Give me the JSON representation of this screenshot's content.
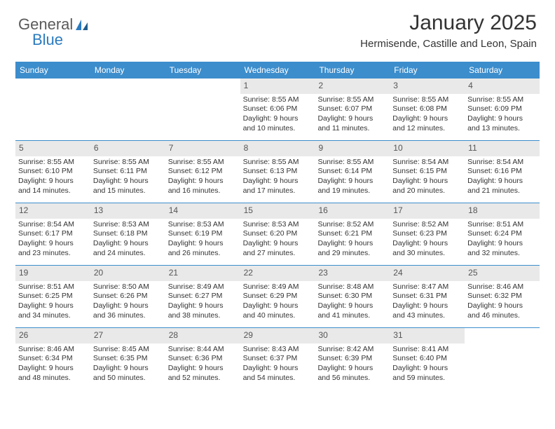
{
  "brand": {
    "part1": "General",
    "part2": "Blue"
  },
  "title": {
    "month": "January 2025",
    "location": "Hermisende, Castille and Leon, Spain"
  },
  "colors": {
    "header_bg": "#3c8dcc",
    "header_text": "#ffffff",
    "daynum_bg": "#e9e9e9",
    "daynum_text": "#555555",
    "body_text": "#333333",
    "row_border": "#3c8dcc",
    "logo_gray": "#5a5a5a",
    "logo_blue": "#2b7bbf"
  },
  "day_names": [
    "Sunday",
    "Monday",
    "Tuesday",
    "Wednesday",
    "Thursday",
    "Friday",
    "Saturday"
  ],
  "weeks": [
    [
      {
        "empty": true
      },
      {
        "empty": true
      },
      {
        "empty": true
      },
      {
        "day": "1",
        "sunrise": "Sunrise: 8:55 AM",
        "sunset": "Sunset: 6:06 PM",
        "daylight1": "Daylight: 9 hours",
        "daylight2": "and 10 minutes."
      },
      {
        "day": "2",
        "sunrise": "Sunrise: 8:55 AM",
        "sunset": "Sunset: 6:07 PM",
        "daylight1": "Daylight: 9 hours",
        "daylight2": "and 11 minutes."
      },
      {
        "day": "3",
        "sunrise": "Sunrise: 8:55 AM",
        "sunset": "Sunset: 6:08 PM",
        "daylight1": "Daylight: 9 hours",
        "daylight2": "and 12 minutes."
      },
      {
        "day": "4",
        "sunrise": "Sunrise: 8:55 AM",
        "sunset": "Sunset: 6:09 PM",
        "daylight1": "Daylight: 9 hours",
        "daylight2": "and 13 minutes."
      }
    ],
    [
      {
        "day": "5",
        "sunrise": "Sunrise: 8:55 AM",
        "sunset": "Sunset: 6:10 PM",
        "daylight1": "Daylight: 9 hours",
        "daylight2": "and 14 minutes."
      },
      {
        "day": "6",
        "sunrise": "Sunrise: 8:55 AM",
        "sunset": "Sunset: 6:11 PM",
        "daylight1": "Daylight: 9 hours",
        "daylight2": "and 15 minutes."
      },
      {
        "day": "7",
        "sunrise": "Sunrise: 8:55 AM",
        "sunset": "Sunset: 6:12 PM",
        "daylight1": "Daylight: 9 hours",
        "daylight2": "and 16 minutes."
      },
      {
        "day": "8",
        "sunrise": "Sunrise: 8:55 AM",
        "sunset": "Sunset: 6:13 PM",
        "daylight1": "Daylight: 9 hours",
        "daylight2": "and 17 minutes."
      },
      {
        "day": "9",
        "sunrise": "Sunrise: 8:55 AM",
        "sunset": "Sunset: 6:14 PM",
        "daylight1": "Daylight: 9 hours",
        "daylight2": "and 19 minutes."
      },
      {
        "day": "10",
        "sunrise": "Sunrise: 8:54 AM",
        "sunset": "Sunset: 6:15 PM",
        "daylight1": "Daylight: 9 hours",
        "daylight2": "and 20 minutes."
      },
      {
        "day": "11",
        "sunrise": "Sunrise: 8:54 AM",
        "sunset": "Sunset: 6:16 PM",
        "daylight1": "Daylight: 9 hours",
        "daylight2": "and 21 minutes."
      }
    ],
    [
      {
        "day": "12",
        "sunrise": "Sunrise: 8:54 AM",
        "sunset": "Sunset: 6:17 PM",
        "daylight1": "Daylight: 9 hours",
        "daylight2": "and 23 minutes."
      },
      {
        "day": "13",
        "sunrise": "Sunrise: 8:53 AM",
        "sunset": "Sunset: 6:18 PM",
        "daylight1": "Daylight: 9 hours",
        "daylight2": "and 24 minutes."
      },
      {
        "day": "14",
        "sunrise": "Sunrise: 8:53 AM",
        "sunset": "Sunset: 6:19 PM",
        "daylight1": "Daylight: 9 hours",
        "daylight2": "and 26 minutes."
      },
      {
        "day": "15",
        "sunrise": "Sunrise: 8:53 AM",
        "sunset": "Sunset: 6:20 PM",
        "daylight1": "Daylight: 9 hours",
        "daylight2": "and 27 minutes."
      },
      {
        "day": "16",
        "sunrise": "Sunrise: 8:52 AM",
        "sunset": "Sunset: 6:21 PM",
        "daylight1": "Daylight: 9 hours",
        "daylight2": "and 29 minutes."
      },
      {
        "day": "17",
        "sunrise": "Sunrise: 8:52 AM",
        "sunset": "Sunset: 6:23 PM",
        "daylight1": "Daylight: 9 hours",
        "daylight2": "and 30 minutes."
      },
      {
        "day": "18",
        "sunrise": "Sunrise: 8:51 AM",
        "sunset": "Sunset: 6:24 PM",
        "daylight1": "Daylight: 9 hours",
        "daylight2": "and 32 minutes."
      }
    ],
    [
      {
        "day": "19",
        "sunrise": "Sunrise: 8:51 AM",
        "sunset": "Sunset: 6:25 PM",
        "daylight1": "Daylight: 9 hours",
        "daylight2": "and 34 minutes."
      },
      {
        "day": "20",
        "sunrise": "Sunrise: 8:50 AM",
        "sunset": "Sunset: 6:26 PM",
        "daylight1": "Daylight: 9 hours",
        "daylight2": "and 36 minutes."
      },
      {
        "day": "21",
        "sunrise": "Sunrise: 8:49 AM",
        "sunset": "Sunset: 6:27 PM",
        "daylight1": "Daylight: 9 hours",
        "daylight2": "and 38 minutes."
      },
      {
        "day": "22",
        "sunrise": "Sunrise: 8:49 AM",
        "sunset": "Sunset: 6:29 PM",
        "daylight1": "Daylight: 9 hours",
        "daylight2": "and 40 minutes."
      },
      {
        "day": "23",
        "sunrise": "Sunrise: 8:48 AM",
        "sunset": "Sunset: 6:30 PM",
        "daylight1": "Daylight: 9 hours",
        "daylight2": "and 41 minutes."
      },
      {
        "day": "24",
        "sunrise": "Sunrise: 8:47 AM",
        "sunset": "Sunset: 6:31 PM",
        "daylight1": "Daylight: 9 hours",
        "daylight2": "and 43 minutes."
      },
      {
        "day": "25",
        "sunrise": "Sunrise: 8:46 AM",
        "sunset": "Sunset: 6:32 PM",
        "daylight1": "Daylight: 9 hours",
        "daylight2": "and 46 minutes."
      }
    ],
    [
      {
        "day": "26",
        "sunrise": "Sunrise: 8:46 AM",
        "sunset": "Sunset: 6:34 PM",
        "daylight1": "Daylight: 9 hours",
        "daylight2": "and 48 minutes."
      },
      {
        "day": "27",
        "sunrise": "Sunrise: 8:45 AM",
        "sunset": "Sunset: 6:35 PM",
        "daylight1": "Daylight: 9 hours",
        "daylight2": "and 50 minutes."
      },
      {
        "day": "28",
        "sunrise": "Sunrise: 8:44 AM",
        "sunset": "Sunset: 6:36 PM",
        "daylight1": "Daylight: 9 hours",
        "daylight2": "and 52 minutes."
      },
      {
        "day": "29",
        "sunrise": "Sunrise: 8:43 AM",
        "sunset": "Sunset: 6:37 PM",
        "daylight1": "Daylight: 9 hours",
        "daylight2": "and 54 minutes."
      },
      {
        "day": "30",
        "sunrise": "Sunrise: 8:42 AM",
        "sunset": "Sunset: 6:39 PM",
        "daylight1": "Daylight: 9 hours",
        "daylight2": "and 56 minutes."
      },
      {
        "day": "31",
        "sunrise": "Sunrise: 8:41 AM",
        "sunset": "Sunset: 6:40 PM",
        "daylight1": "Daylight: 9 hours",
        "daylight2": "and 59 minutes."
      },
      {
        "empty": true
      }
    ]
  ]
}
